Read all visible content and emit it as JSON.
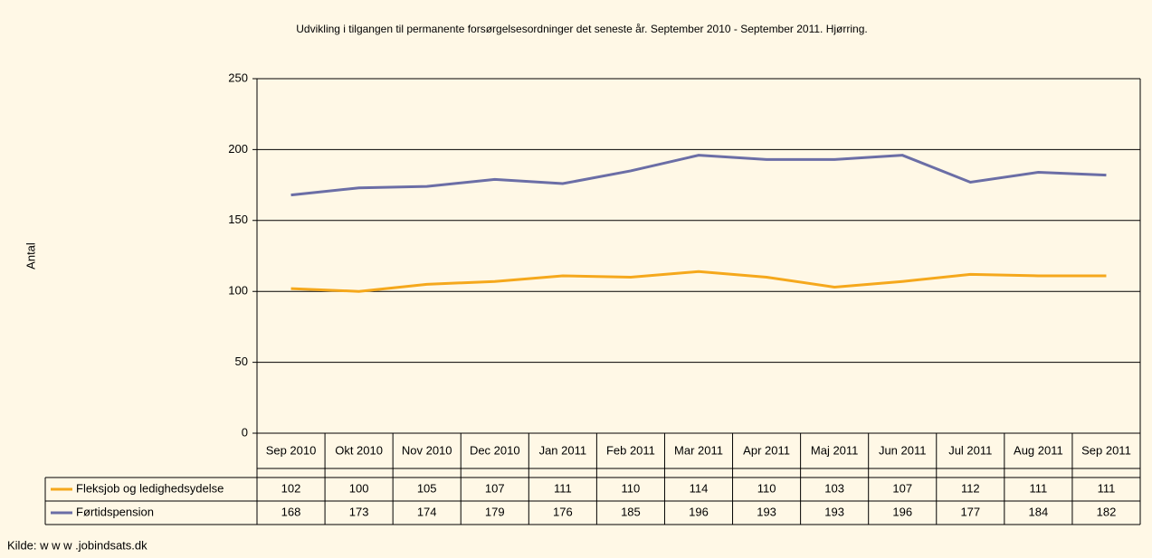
{
  "chart_data": {
    "type": "line",
    "title": "Udvikling i tilgangen til permanente forsørgelsesordninger det seneste år. September 2010 - September 2011. Hjørring.",
    "y_label": "Antal",
    "source": "Kilde: w w w .jobindsats.dk",
    "categories": [
      "Sep 2010",
      "Okt 2010",
      "Nov 2010",
      "Dec 2010",
      "Jan 2011",
      "Feb 2011",
      "Mar 2011",
      "Apr 2011",
      "Maj 2011",
      "Jun 2011",
      "Jul 2011",
      "Aug 2011",
      "Sep 2011"
    ],
    "series": [
      {
        "name": "Fleksjob og ledighedsydelse",
        "color": "#f5a81c",
        "values": [
          102,
          100,
          105,
          107,
          111,
          110,
          114,
          110,
          103,
          107,
          112,
          111,
          111
        ]
      },
      {
        "name": "Førtidspension",
        "color": "#6b6ea6",
        "values": [
          168,
          173,
          174,
          179,
          176,
          185,
          196,
          193,
          193,
          196,
          177,
          184,
          182
        ]
      }
    ],
    "ylim": [
      0,
      250
    ],
    "yticks": [
      0,
      50,
      100,
      150,
      200,
      250
    ],
    "grid": true
  }
}
